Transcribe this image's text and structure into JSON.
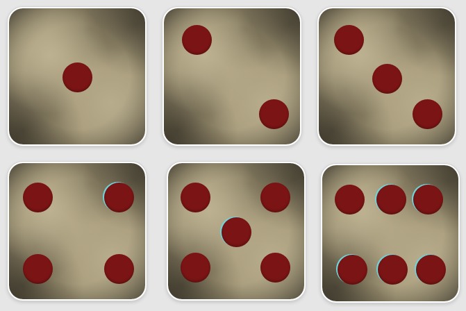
{
  "colors": {
    "background": "#e6e6e6",
    "die_border": "#ffffff",
    "die_face_base": "#a69a79",
    "die_face_dark": "#2e2b22",
    "die_face_light": "#bcb191",
    "pip": "#7b1414",
    "pip_glint": "#6fd3d8"
  },
  "dice": [
    {
      "name": "die-one",
      "value": 1
    },
    {
      "name": "die-two",
      "value": 2
    },
    {
      "name": "die-three",
      "value": 3
    },
    {
      "name": "die-four",
      "value": 4
    },
    {
      "name": "die-five",
      "value": 5
    },
    {
      "name": "die-six",
      "value": 6
    }
  ]
}
